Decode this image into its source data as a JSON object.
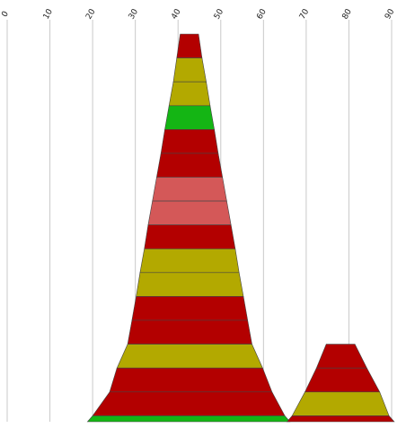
{
  "chart_data": {
    "type": "area",
    "title": "",
    "xlabel": "",
    "ylabel": "",
    "xlim": [
      0,
      90
    ],
    "x_ticks": [
      "0",
      "10",
      "20",
      "30",
      "40",
      "50",
      "60",
      "70",
      "80",
      "90"
    ],
    "grid": true,
    "legend": "none",
    "colors": {
      "red": "#b30000",
      "olive": "#b3a900",
      "green": "#14b514",
      "pink": "#d45858"
    },
    "series": [
      {
        "layers": [
          {
            "left": 40.5,
            "right": 44.8,
            "color": "red"
          },
          {
            "left": 39.7,
            "right": 45.6,
            "color": "olive"
          },
          {
            "left": 38.9,
            "right": 46.6,
            "color": "olive"
          },
          {
            "left": 37.9,
            "right": 47.5,
            "color": "green"
          },
          {
            "left": 36.9,
            "right": 48.5,
            "color": "red"
          },
          {
            "left": 36.0,
            "right": 49.4,
            "color": "red"
          },
          {
            "left": 35.0,
            "right": 50.4,
            "color": "pink"
          },
          {
            "left": 34.0,
            "right": 51.4,
            "color": "pink"
          },
          {
            "left": 33.0,
            "right": 52.4,
            "color": "red"
          },
          {
            "left": 32.1,
            "right": 53.4,
            "color": "olive"
          },
          {
            "left": 31.1,
            "right": 54.3,
            "color": "olive"
          },
          {
            "left": 30.2,
            "right": 55.3,
            "color": "red"
          },
          {
            "left": 29.2,
            "right": 56.3,
            "color": "red"
          },
          {
            "left": 28.2,
            "right": 57.3,
            "color": "olive"
          },
          {
            "left": 25.7,
            "right": 59.8,
            "color": "red"
          },
          {
            "left": 24.0,
            "right": 62.0,
            "color": "red"
          },
          {
            "left": 20.0,
            "right": 65.0,
            "color": "green"
          }
        ]
      },
      {
        "layers": [
          {
            "left": 74.7,
            "right": 81.4,
            "color": "red"
          },
          {
            "left": 72.4,
            "right": 84.2,
            "color": "red"
          },
          {
            "left": 69.7,
            "right": 87.2,
            "color": "olive"
          },
          {
            "left": 66.7,
            "right": 89.4,
            "color": "red"
          }
        ]
      }
    ]
  }
}
